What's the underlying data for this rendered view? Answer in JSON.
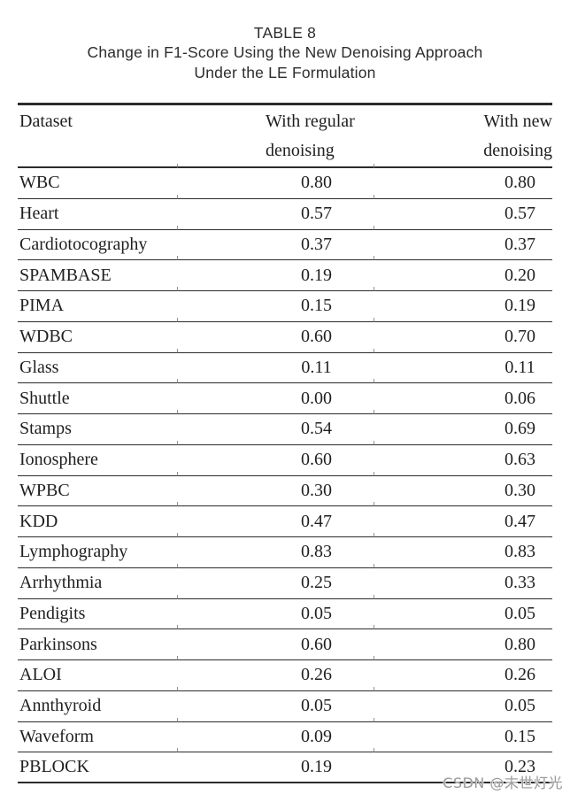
{
  "title": {
    "label": "TABLE 8",
    "caption_line1": "Change in F1-Score Using the New Denoising Approach",
    "caption_line2": "Under the LE Formulation"
  },
  "table": {
    "columns": [
      {
        "label": "Dataset"
      },
      {
        "line1": "With regular",
        "line2": "denoising"
      },
      {
        "line1": "With new",
        "line2": "denoising"
      }
    ],
    "rows": [
      {
        "dataset": "WBC",
        "regular": "0.80",
        "new": "0.80"
      },
      {
        "dataset": "Heart",
        "regular": "0.57",
        "new": "0.57"
      },
      {
        "dataset": "Cardiotocography",
        "regular": "0.37",
        "new": "0.37"
      },
      {
        "dataset": "SPAMBASE",
        "regular": "0.19",
        "new": "0.20"
      },
      {
        "dataset": "PIMA",
        "regular": "0.15",
        "new": "0.19"
      },
      {
        "dataset": "WDBC",
        "regular": "0.60",
        "new": "0.70"
      },
      {
        "dataset": "Glass",
        "regular": "0.11",
        "new": "0.11"
      },
      {
        "dataset": "Shuttle",
        "regular": "0.00",
        "new": "0.06"
      },
      {
        "dataset": "Stamps",
        "regular": "0.54",
        "new": "0.69"
      },
      {
        "dataset": "Ionosphere",
        "regular": "0.60",
        "new": "0.63"
      },
      {
        "dataset": "WPBC",
        "regular": "0.30",
        "new": "0.30"
      },
      {
        "dataset": "KDD",
        "regular": "0.47",
        "new": "0.47"
      },
      {
        "dataset": "Lymphography",
        "regular": "0.83",
        "new": "0.83"
      },
      {
        "dataset": "Arrhythmia",
        "regular": "0.25",
        "new": "0.33"
      },
      {
        "dataset": "Pendigits",
        "regular": "0.05",
        "new": "0.05"
      },
      {
        "dataset": "Parkinsons",
        "regular": "0.60",
        "new": "0.80"
      },
      {
        "dataset": "ALOI",
        "regular": "0.26",
        "new": "0.26"
      },
      {
        "dataset": "Annthyroid",
        "regular": "0.05",
        "new": "0.05"
      },
      {
        "dataset": "Waveform",
        "regular": "0.09",
        "new": "0.15"
      },
      {
        "dataset": "PBLOCK",
        "regular": "0.19",
        "new": "0.23"
      }
    ]
  },
  "watermark": {
    "text": "CSDN @末世灯光"
  },
  "colors": {
    "rule": "#2b2b2b",
    "text": "#1f1f1f",
    "title_text": "#2d2d2d",
    "watermark": "#9b9b9b",
    "background": "#ffffff"
  }
}
